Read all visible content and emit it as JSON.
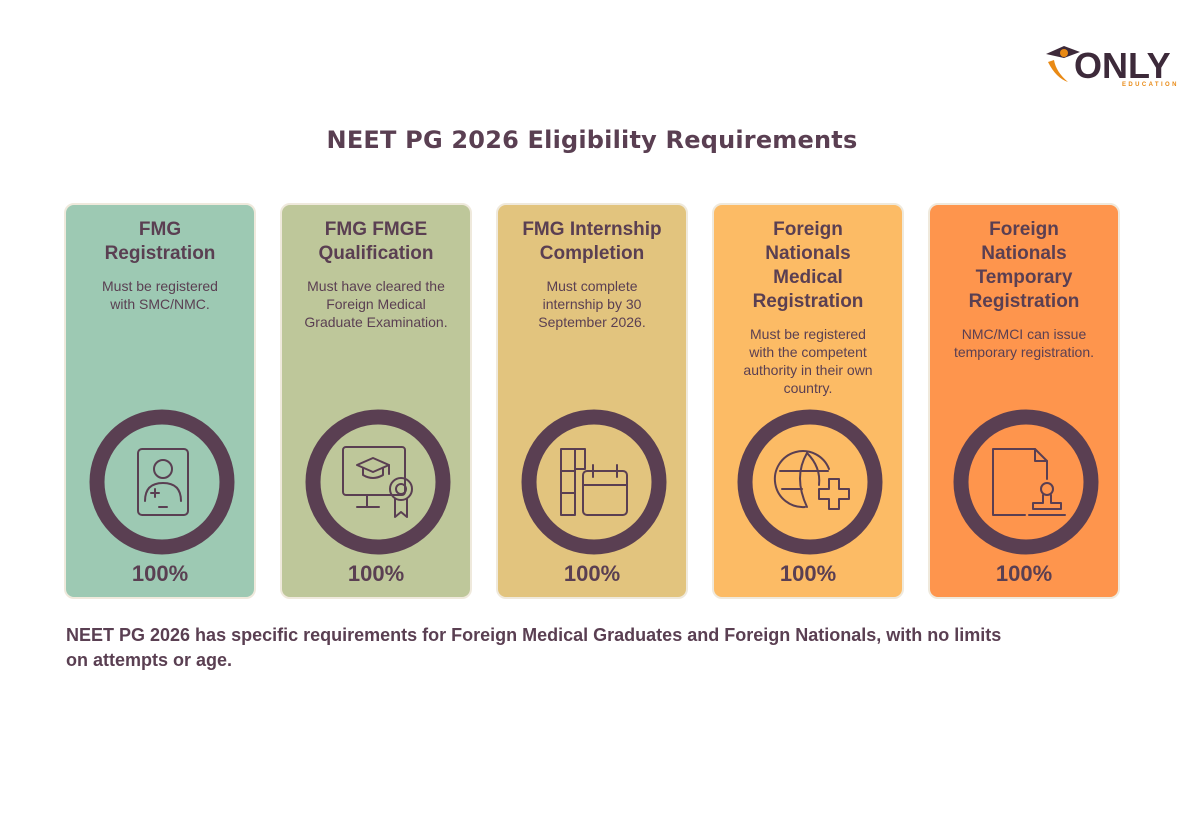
{
  "logo": {
    "text": "ONLY",
    "subtext": "EDUCATION"
  },
  "title": "NEET PG 2026 Eligibility Requirements",
  "colors": {
    "ring": "#5a3f52",
    "text": "#5a3f52",
    "card_border": "#efe9dc"
  },
  "cards": [
    {
      "title": "FMG Registration",
      "title_lines": [
        "FMG",
        "Registration"
      ],
      "description": "Must be registered with SMC/NMC.",
      "icon": "medical-id-card-icon",
      "percent": "100%",
      "color": "#9dc9b3"
    },
    {
      "title": "FMG FMGE Qualification",
      "title_lines": [
        "FMG FMGE",
        "Qualification"
      ],
      "description": "Must have cleared the Foreign Medical Graduate Examination.",
      "icon": "graduation-certificate-icon",
      "percent": "100%",
      "color": "#bec79a"
    },
    {
      "title": "FMG Internship Completion",
      "title_lines": [
        "FMG Internship",
        "Completion"
      ],
      "description": "Must complete internship by 30 September 2026.",
      "icon": "calendar-icon",
      "percent": "100%",
      "color": "#e2c47e"
    },
    {
      "title": "Foreign Nationals Medical Registration",
      "title_lines": [
        "Foreign",
        "Nationals",
        "Medical",
        "Registration"
      ],
      "description": "Must be registered with the competent authority in their own country.",
      "icon": "globe-plus-icon",
      "percent": "100%",
      "color": "#fcbb65"
    },
    {
      "title": "Foreign Nationals Temporary Registration",
      "title_lines": [
        "Foreign",
        "Nationals",
        "Temporary",
        "Registration"
      ],
      "description": "NMC/MCI can issue temporary registration.",
      "icon": "document-stamp-icon",
      "percent": "100%",
      "color": "#fe954d"
    }
  ],
  "summary": "NEET PG 2026 has specific requirements for Foreign Medical Graduates and Foreign Nationals, with no limits on attempts or age."
}
